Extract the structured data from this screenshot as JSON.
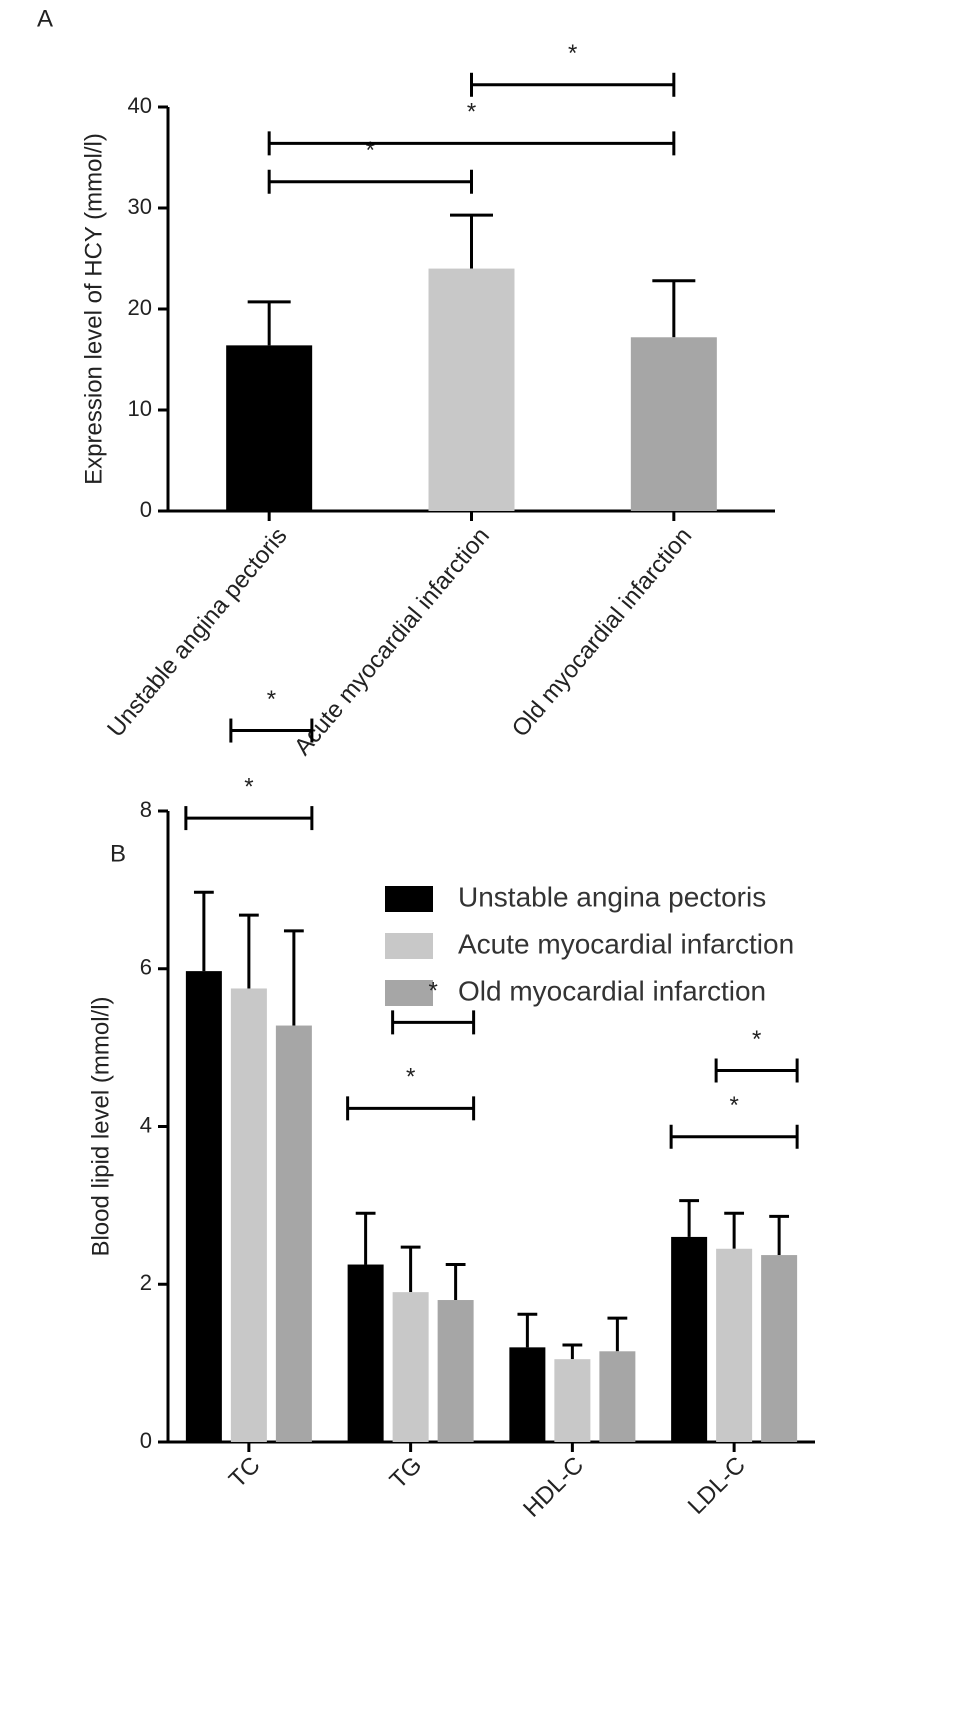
{
  "chart_data": [
    {
      "type": "bar",
      "panel_label": "A",
      "ylabel": "Expression level of HCY (mmol/l)",
      "categories": [
        "Unstable angina pectoris",
        "Acute myocardial infarction",
        "Old myocardial infarction"
      ],
      "values": [
        16.4,
        24.0,
        17.2
      ],
      "errors": [
        4.3,
        5.3,
        5.6
      ],
      "colors": [
        "#000000",
        "#c8c8c8",
        "#a6a6a6"
      ],
      "ylim": [
        0,
        40
      ],
      "yticks": [
        0,
        10,
        20,
        30,
        40
      ],
      "significance": [
        {
          "between": [
            "Unstable angina pectoris",
            "Acute myocardial infarction"
          ],
          "y": 32.6,
          "label": "*"
        },
        {
          "between": [
            "Unstable angina pectoris",
            "Old myocardial infarction"
          ],
          "y": 36.4,
          "label": "*"
        },
        {
          "between": [
            "Acute myocardial infarction",
            "Old myocardial infarction"
          ],
          "y": 42.2,
          "label": "*"
        }
      ]
    },
    {
      "type": "grouped_bar",
      "panel_label": "B",
      "ylabel": "Blood lipid level (mmol/l)",
      "categories": [
        "TC",
        "TG",
        "HDL-C",
        "LDL-C"
      ],
      "series": [
        {
          "name": "Unstable angina pectoris",
          "color": "#000000",
          "values": [
            5.97,
            2.25,
            1.2,
            2.6
          ],
          "errors": [
            1.0,
            0.65,
            0.42,
            0.46
          ]
        },
        {
          "name": "Acute myocardial infarction",
          "color": "#c8c8c8",
          "values": [
            5.75,
            1.9,
            1.05,
            2.45
          ],
          "errors": [
            0.93,
            0.57,
            0.18,
            0.45
          ]
        },
        {
          "name": "Old myocardial infarction",
          "color": "#a6a6a6",
          "values": [
            5.28,
            1.8,
            1.15,
            2.37
          ],
          "errors": [
            1.2,
            0.45,
            0.42,
            0.49
          ]
        }
      ],
      "ylim": [
        0,
        8
      ],
      "yticks": [
        0,
        2,
        4,
        6,
        8
      ],
      "significance": [
        {
          "category": "TC",
          "between": [
            "Acute myocardial infarction",
            "Old myocardial infarction"
          ],
          "y": 9.02,
          "label": "*"
        },
        {
          "category": "TC",
          "between": [
            "Unstable angina pectoris",
            "Old myocardial infarction"
          ],
          "y": 7.91,
          "label": "*"
        },
        {
          "category": "TG",
          "between": [
            "Acute myocardial infarction",
            "Old myocardial infarction"
          ],
          "y": 5.32,
          "label": "*"
        },
        {
          "category": "TG",
          "between": [
            "Unstable angina pectoris",
            "Old myocardial infarction"
          ],
          "y": 4.23,
          "label": "*"
        },
        {
          "category": "LDL-C",
          "between": [
            "Acute myocardial infarction",
            "Old myocardial infarction"
          ],
          "y": 4.71,
          "label": "*"
        },
        {
          "category": "LDL-C",
          "between": [
            "Unstable angina pectoris",
            "Old myocardial infarction"
          ],
          "y": 3.87,
          "label": "*"
        }
      ]
    }
  ]
}
